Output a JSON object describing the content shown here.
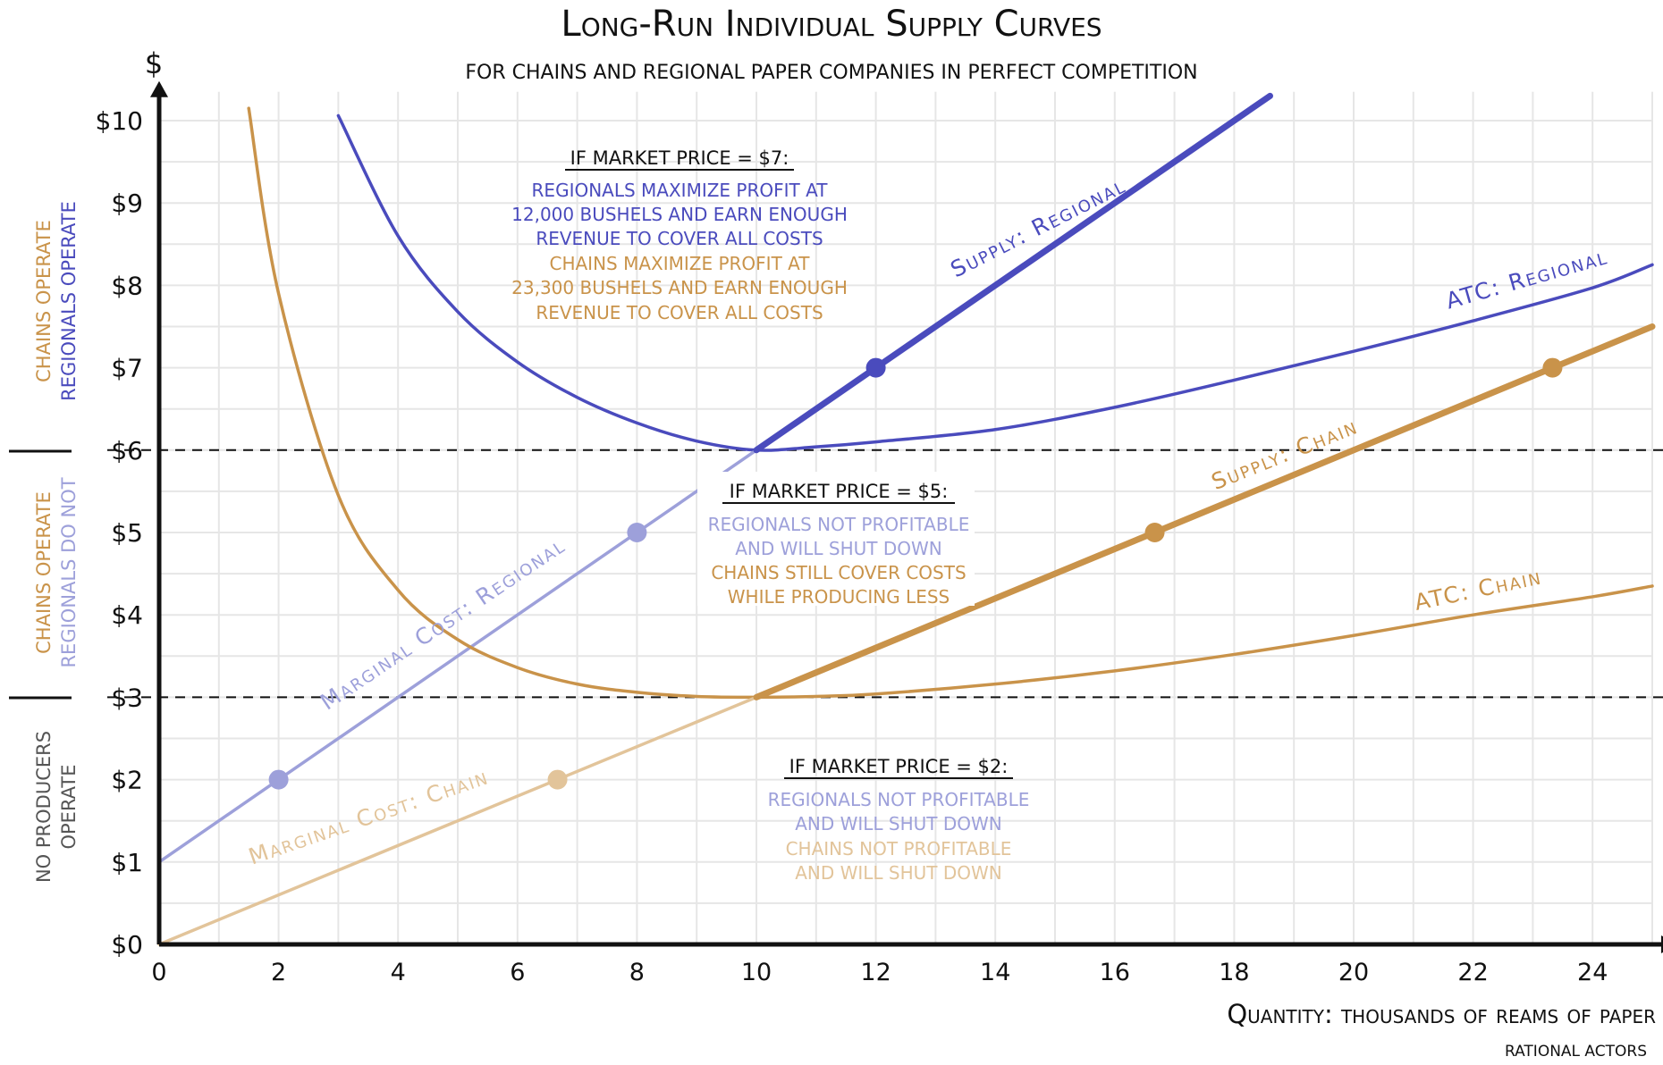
{
  "chart_data": {
    "type": "line",
    "title": "Long-Run Individual Supply Curves",
    "subtitle": "for chains and regional paper companies in perfect competition",
    "xlabel": "Quantity: thousands of reams of paper",
    "ylabel": "$",
    "xlim": [
      0,
      25
    ],
    "ylim": [
      0,
      10
    ],
    "grid": true,
    "x_ticks": [
      "0",
      "2",
      "4",
      "6",
      "8",
      "10",
      "12",
      "14",
      "16",
      "18",
      "20",
      "22",
      "24"
    ],
    "y_ticks": [
      "$0",
      "$1",
      "$2",
      "$3",
      "$4",
      "$5",
      "$6",
      "$7",
      "$8",
      "$9",
      "$10"
    ],
    "colors": {
      "regional": "#4a4bbd",
      "regional_light": "#9da0da",
      "chain": "#c9934a",
      "chain_light": "#e2c49a",
      "grid": "#e6e6e6",
      "axis": "#111111",
      "dark_label": "#555555"
    },
    "series": [
      {
        "name": "ATC: Regional",
        "x": [
          3,
          4,
          5,
          6,
          7,
          8,
          9,
          10,
          11,
          12,
          14,
          16,
          18,
          20,
          22,
          24,
          25
        ],
        "y": [
          10.06,
          8.6,
          7.68,
          7.07,
          6.64,
          6.33,
          6.11,
          6.0,
          6.04,
          6.1,
          6.25,
          6.52,
          6.85,
          7.2,
          7.57,
          7.97,
          8.25
        ]
      },
      {
        "name": "Marginal Cost: Regional",
        "x": [
          0,
          10
        ],
        "y": [
          1,
          6
        ]
      },
      {
        "name": "Supply: Regional",
        "x": [
          10,
          18.6
        ],
        "y": [
          6,
          10.3
        ]
      },
      {
        "name": "ATC: Chain",
        "x": [
          1.5,
          2,
          3,
          4,
          5,
          6,
          7,
          8,
          9,
          10,
          11,
          12,
          14,
          16,
          18,
          20,
          22,
          24,
          25
        ],
        "y": [
          10.15,
          7.9,
          5.45,
          4.3,
          3.7,
          3.36,
          3.16,
          3.06,
          3.01,
          3.0,
          3.01,
          3.04,
          3.16,
          3.32,
          3.52,
          3.75,
          4.0,
          4.22,
          4.35
        ]
      },
      {
        "name": "Marginal Cost: Chain",
        "x": [
          0,
          10
        ],
        "y": [
          0,
          3
        ]
      },
      {
        "name": "Supply: Chain",
        "x": [
          10,
          25
        ],
        "y": [
          3,
          7.5
        ]
      }
    ],
    "points": [
      {
        "series": "Marginal Cost: Regional",
        "x": 2,
        "y": 2
      },
      {
        "series": "Marginal Cost: Regional",
        "x": 8,
        "y": 5
      },
      {
        "series": "Supply: Regional",
        "x": 12,
        "y": 7
      },
      {
        "series": "Marginal Cost: Chain",
        "x": 6.67,
        "y": 2
      },
      {
        "series": "Supply: Chain",
        "x": 16.67,
        "y": 5
      },
      {
        "series": "Supply: Chain",
        "x": 23.33,
        "y": 7
      }
    ],
    "reference_lines": [
      {
        "axis": "y",
        "value": 6,
        "style": "dashed"
      },
      {
        "axis": "y",
        "value": 3,
        "style": "dashed"
      }
    ],
    "series_labels": {
      "supply_regional": "Supply: Regional",
      "atc_regional": "ATC: Regional",
      "mc_regional": "Marginal Cost: Regional",
      "supply_chain": "Supply: Chain",
      "atc_chain": "ATC: Chain",
      "mc_chain": "Marginal Cost: Chain"
    },
    "side_labels": {
      "top_line1": "chains operate",
      "top_line2": "regionals operate",
      "mid_line1": "chains operate",
      "mid_line2": "regionals do not",
      "bottom_line1": "no producers",
      "bottom_line2": "operate"
    },
    "annotations": {
      "p7": {
        "heading": "if market price = $7:",
        "lines": [
          "regionals maximize profit at",
          "12,000 bushels and earn enough",
          "revenue to cover all costs",
          "chains maximize profit at",
          "23,300 bushels and earn enough",
          "revenue to cover all costs"
        ]
      },
      "p5": {
        "heading": "if market price = $5:",
        "lines": [
          "regionals not profitable",
          "and will shut down",
          "chains still cover costs",
          "while producing less"
        ]
      },
      "p2": {
        "heading": "if market price = $2:",
        "lines": [
          "regionals not profitable",
          "and will shut down",
          "chains not profitable",
          "and will shut down"
        ]
      }
    },
    "credit": "rational actors"
  }
}
